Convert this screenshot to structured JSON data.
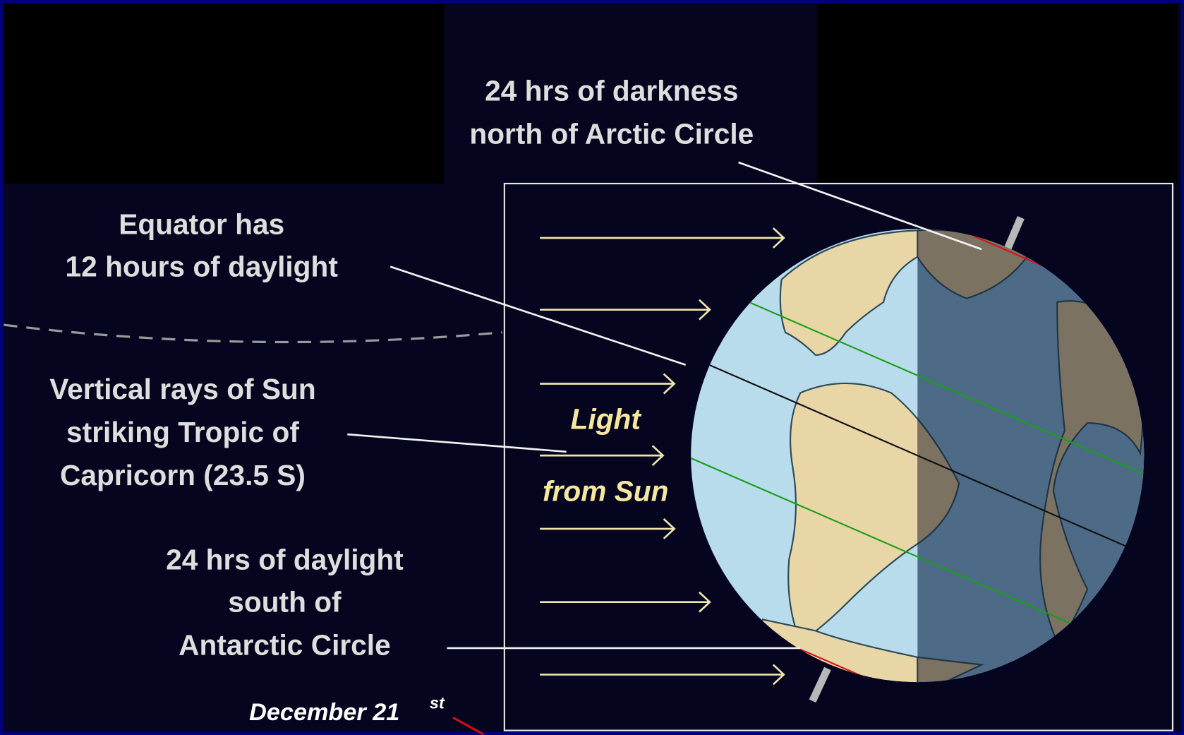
{
  "arctic_label": [
    "24 hrs of darkness",
    "north of Arctic Circle"
  ],
  "equator_label": [
    "Equator has",
    "12 hours of daylight"
  ],
  "tropic_label": [
    "Vertical rays of Sun",
    "striking Tropic of",
    "Capricorn (23.5 S)"
  ],
  "sun_label": [
    "Light",
    "from Sun"
  ],
  "antarctic_label": [
    "24 hrs of daylight",
    "south of",
    "Antarctic Circle"
  ],
  "date_label": {
    "text": "December 21",
    "superscript": "st"
  }
}
